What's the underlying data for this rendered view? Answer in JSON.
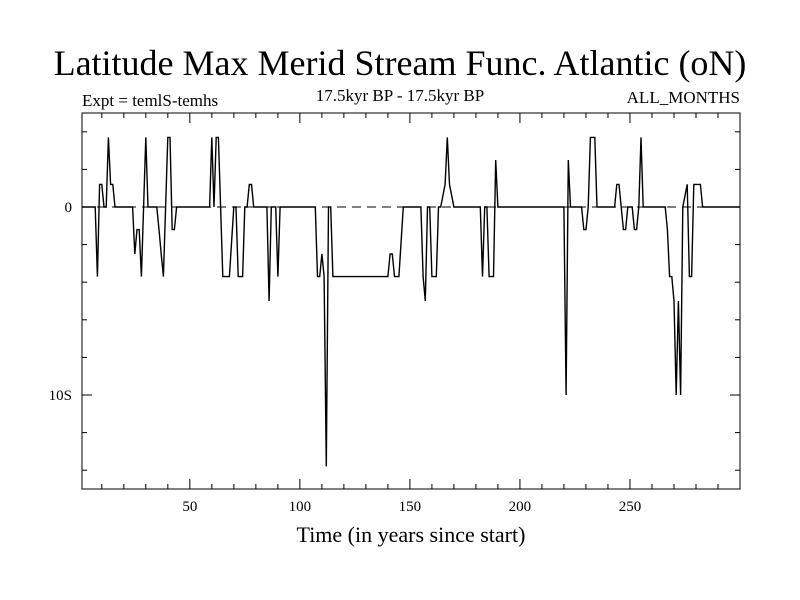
{
  "chart_data": {
    "type": "line",
    "title": "Latitude Max Merid Stream Func. Atlantic (oN)",
    "subtitle_left": "Expt = temlS-temhs",
    "subtitle_center": "17.5kyr BP - 17.5kyr BP",
    "subtitle_right": "ALL_MONTHS",
    "xlabel": "Time (in years since start)",
    "ylabel": "",
    "xlim": [
      1,
      300
    ],
    "ylim": [
      -15,
      5
    ],
    "x_ticks": [
      50,
      100,
      150,
      200,
      250
    ],
    "x_tick_labels": [
      "50",
      "100",
      "150",
      "200",
      "250"
    ],
    "y_ticks": [
      0,
      -10
    ],
    "y_tick_labels": [
      "0",
      "10S"
    ],
    "reference_line": {
      "y": 0,
      "style": "dashed"
    },
    "series": [
      {
        "name": "Latitude Max Merid Stream Func",
        "points": [
          [
            1,
            0
          ],
          [
            7,
            0
          ],
          [
            8,
            -3.7
          ],
          [
            9,
            1.2
          ],
          [
            10,
            1.2
          ],
          [
            11,
            0
          ],
          [
            12,
            0
          ],
          [
            13,
            3.7
          ],
          [
            14,
            1.2
          ],
          [
            15,
            1.2
          ],
          [
            16,
            0
          ],
          [
            24,
            0
          ],
          [
            25,
            -2.5
          ],
          [
            26,
            -1.2
          ],
          [
            27,
            -1.2
          ],
          [
            28,
            -3.7
          ],
          [
            30,
            3.7
          ],
          [
            31,
            0
          ],
          [
            35,
            0
          ],
          [
            36,
            -1.2
          ],
          [
            37,
            -2.5
          ],
          [
            38,
            -3.7
          ],
          [
            40,
            3.7
          ],
          [
            41,
            3.7
          ],
          [
            42,
            -1.2
          ],
          [
            43,
            -1.2
          ],
          [
            44,
            0
          ],
          [
            59,
            0
          ],
          [
            60,
            3.7
          ],
          [
            61,
            0
          ],
          [
            62,
            3.7
          ],
          [
            63,
            3.7
          ],
          [
            64,
            0
          ],
          [
            65,
            -3.7
          ],
          [
            68,
            -3.7
          ],
          [
            70,
            0
          ],
          [
            71,
            0
          ],
          [
            72,
            -3.7
          ],
          [
            74,
            -3.7
          ],
          [
            75,
            0
          ],
          [
            76,
            0
          ],
          [
            77,
            1.2
          ],
          [
            78,
            1.2
          ],
          [
            79,
            0
          ],
          [
            85,
            0
          ],
          [
            86,
            -5
          ],
          [
            87,
            0
          ],
          [
            89,
            0
          ],
          [
            90,
            -3.7
          ],
          [
            91,
            0
          ],
          [
            107,
            0
          ],
          [
            108,
            -3.7
          ],
          [
            109,
            -3.7
          ],
          [
            110,
            -2.5
          ],
          [
            111,
            -3.7
          ],
          [
            112,
            -13.8
          ],
          [
            113,
            0
          ],
          [
            114,
            0
          ],
          [
            115,
            -3.7
          ],
          [
            140,
            -3.7
          ],
          [
            141,
            -2.5
          ],
          [
            142,
            -2.5
          ],
          [
            143,
            -3.7
          ],
          [
            145,
            -3.7
          ],
          [
            147,
            0
          ],
          [
            155,
            0
          ],
          [
            156,
            -3.7
          ],
          [
            157,
            -5
          ],
          [
            158,
            0
          ],
          [
            159,
            0
          ],
          [
            160,
            -3.7
          ],
          [
            162,
            -3.7
          ],
          [
            163,
            0
          ],
          [
            164,
            0
          ],
          [
            166,
            1.2
          ],
          [
            167,
            3.7
          ],
          [
            168,
            1.2
          ],
          [
            170,
            0
          ],
          [
            182,
            0
          ],
          [
            183,
            -3.7
          ],
          [
            184,
            0
          ],
          [
            185,
            0
          ],
          [
            186,
            -3.7
          ],
          [
            188,
            -3.7
          ],
          [
            189,
            2.5
          ],
          [
            190,
            0
          ],
          [
            220,
            0
          ],
          [
            221,
            -10
          ],
          [
            222,
            2.5
          ],
          [
            223,
            0
          ],
          [
            228,
            0
          ],
          [
            229,
            -1.2
          ],
          [
            230,
            -1.2
          ],
          [
            231,
            0
          ],
          [
            232,
            3.7
          ],
          [
            234,
            3.7
          ],
          [
            235,
            0
          ],
          [
            243,
            0
          ],
          [
            244,
            1.2
          ],
          [
            245,
            1.2
          ],
          [
            246,
            0
          ],
          [
            247,
            -1.2
          ],
          [
            248,
            -1.2
          ],
          [
            249,
            0
          ],
          [
            251,
            0
          ],
          [
            252,
            -1.2
          ],
          [
            253,
            -1.2
          ],
          [
            254,
            0
          ],
          [
            255,
            3.7
          ],
          [
            256,
            0
          ],
          [
            266,
            0
          ],
          [
            267,
            -1.2
          ],
          [
            268,
            -3.7
          ],
          [
            269,
            -3.7
          ],
          [
            270,
            -5
          ],
          [
            271,
            -10
          ],
          [
            272,
            -5
          ],
          [
            273,
            -10
          ],
          [
            274,
            0
          ],
          [
            276,
            1.2
          ],
          [
            277,
            -3.7
          ],
          [
            278,
            -3.7
          ],
          [
            279,
            1.2
          ],
          [
            282,
            1.2
          ],
          [
            283,
            0
          ],
          [
            300,
            0
          ]
        ]
      }
    ]
  }
}
